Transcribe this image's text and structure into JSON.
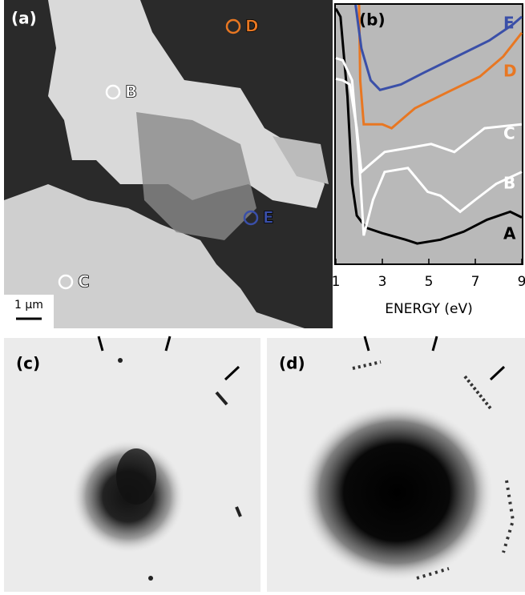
{
  "panels": {
    "a": {
      "label": "(a)",
      "scale_bar": "1 μm",
      "markers": [
        {
          "name": "B",
          "color": "#ffffff"
        },
        {
          "name": "C",
          "color": "#ffffff"
        },
        {
          "name": "D",
          "color": "#e87722"
        },
        {
          "name": "E",
          "color": "#3a4fa8"
        }
      ]
    },
    "c": {
      "label": "(c)"
    },
    "d": {
      "label": "(d)"
    }
  },
  "chart_data": {
    "type": "line",
    "title": "(b)",
    "x_label": "ENERGY (eV)",
    "xlim": [
      1,
      9
    ],
    "xticks": [
      1,
      3,
      5,
      7,
      9
    ],
    "ylim": [
      0,
      1
    ],
    "background": "#b9b9b9",
    "series": [
      {
        "name": "A",
        "color": "#000000",
        "x": [
          1.0,
          1.2,
          1.5,
          1.7,
          1.9,
          2.3,
          3,
          4,
          4.5,
          5.5,
          6.5,
          7.5,
          8.5,
          9
        ],
        "values": [
          0.985,
          0.954,
          0.646,
          0.308,
          0.185,
          0.138,
          0.117,
          0.092,
          0.077,
          0.092,
          0.123,
          0.169,
          0.2,
          0.178
        ]
      },
      {
        "name": "B",
        "color": "#ffffff",
        "x": [
          1,
          1.3,
          1.7,
          2.0,
          2.2,
          2.6,
          3.1,
          4.1,
          4.95,
          5.5,
          6.35,
          7.0,
          7.9,
          9
        ],
        "values": [
          0.794,
          0.785,
          0.708,
          0.4,
          0.108,
          0.246,
          0.354,
          0.369,
          0.277,
          0.262,
          0.2,
          0.246,
          0.308,
          0.354
        ]
      },
      {
        "name": "C",
        "color": "#ffffff",
        "x": [
          1,
          1.3,
          1.6,
          1.9,
          2.1,
          2.5,
          3.1,
          4.1,
          5.1,
          6.1,
          7.4,
          9
        ],
        "values": [
          0.714,
          0.708,
          0.692,
          0.523,
          0.354,
          0.385,
          0.431,
          0.446,
          0.462,
          0.431,
          0.523,
          0.538
        ]
      },
      {
        "name": "D",
        "color": "#e87722",
        "x": [
          2.0,
          2.05,
          2.2,
          3.0,
          3.4,
          4.4,
          5.8,
          7.2,
          8.2,
          9
        ],
        "values": [
          1,
          0.708,
          0.538,
          0.538,
          0.523,
          0.6,
          0.662,
          0.723,
          0.8,
          0.892
        ]
      },
      {
        "name": "E",
        "color": "#3a4fa8",
        "x": [
          1.85,
          2.1,
          2.5,
          2.9,
          3.8,
          4.8,
          6.2,
          7.6,
          8.6,
          9
        ],
        "values": [
          1,
          0.831,
          0.708,
          0.671,
          0.692,
          0.738,
          0.8,
          0.862,
          0.923,
          0.954
        ]
      }
    ]
  }
}
